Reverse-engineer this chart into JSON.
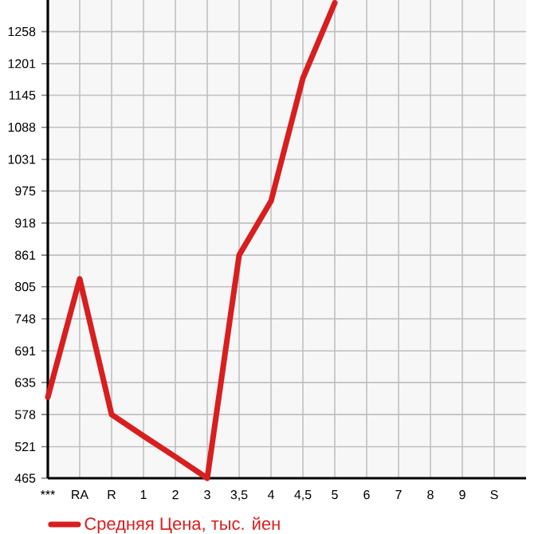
{
  "chart_data": {
    "type": "line",
    "categories": [
      "***",
      "RA",
      "R",
      "1",
      "2",
      "3",
      "3,5",
      "4",
      "4,5",
      "5",
      "6",
      "7",
      "8",
      "9",
      "S"
    ],
    "series": [
      {
        "name": "Средняя Цена, тыс. йен",
        "color": "#d81e1e",
        "values": [
          609,
          819,
          578,
          540,
          503,
          465,
          861,
          957,
          1175,
          1309,
          null,
          null,
          null,
          null,
          null
        ]
      }
    ],
    "ylim": [
      465,
      1314
    ],
    "yticks": [
      465,
      521,
      578,
      635,
      691,
      748,
      805,
      861,
      918,
      975,
      1031,
      1088,
      1145,
      1201,
      1258
    ],
    "grid": true,
    "legend": "bottom"
  }
}
